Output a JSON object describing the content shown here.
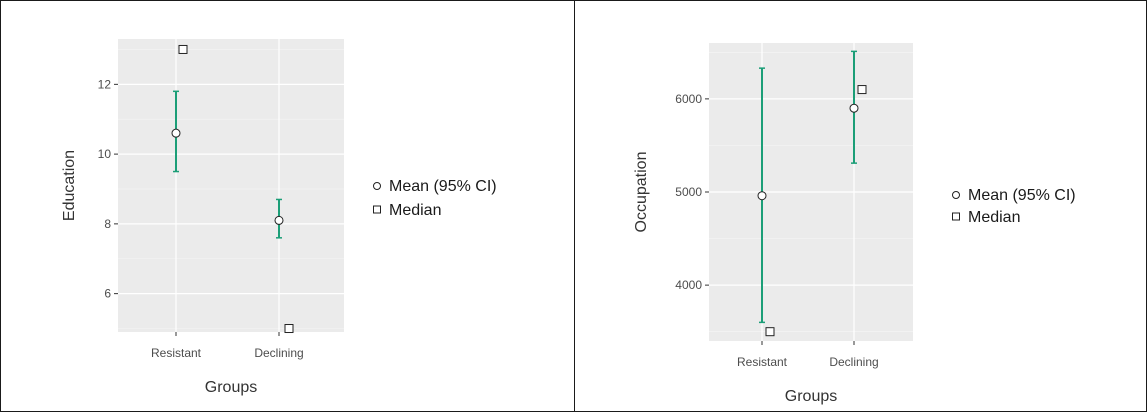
{
  "chart_data": [
    {
      "type": "scatter",
      "xlabel": "Groups",
      "ylabel": "Education",
      "categories": [
        "Resistant",
        "Declining"
      ],
      "ylim": [
        4.9,
        13.3
      ],
      "yticks": [
        6,
        8,
        10,
        12
      ],
      "ytick_labels": [
        "6",
        "8",
        "10",
        "12"
      ],
      "grid": true,
      "legend": {
        "placement": "right",
        "entries": [
          "Mean (95% CI)",
          "Median"
        ]
      },
      "series": [
        {
          "name": "Mean (95% CI)",
          "values": [
            10.6,
            8.1
          ],
          "ci_low": [
            9.5,
            7.6
          ],
          "ci_high": [
            11.8,
            8.7
          ]
        },
        {
          "name": "Median",
          "values": [
            13,
            5
          ]
        }
      ],
      "colors": {
        "errorbar": "#1b9e77",
        "panel": "#ebebeb",
        "grid": "#ffffff"
      }
    },
    {
      "type": "scatter",
      "xlabel": "Groups",
      "ylabel": "Occupation",
      "categories": [
        "Resistant",
        "Declining"
      ],
      "ylim": [
        3400,
        6600
      ],
      "yticks": [
        4000,
        5000,
        6000
      ],
      "ytick_labels": [
        "4000",
        "5000",
        "6000"
      ],
      "grid": true,
      "legend": {
        "placement": "right",
        "entries": [
          "Mean (95% CI)",
          "Median"
        ]
      },
      "series": [
        {
          "name": "Mean (95% CI)",
          "values": [
            4960,
            5900
          ],
          "ci_low": [
            3600,
            5310
          ],
          "ci_high": [
            6330,
            6510
          ]
        },
        {
          "name": "Median",
          "values": [
            3500,
            6100
          ]
        }
      ],
      "colors": {
        "errorbar": "#1b9e77",
        "panel": "#ebebeb",
        "grid": "#ffffff"
      }
    }
  ]
}
